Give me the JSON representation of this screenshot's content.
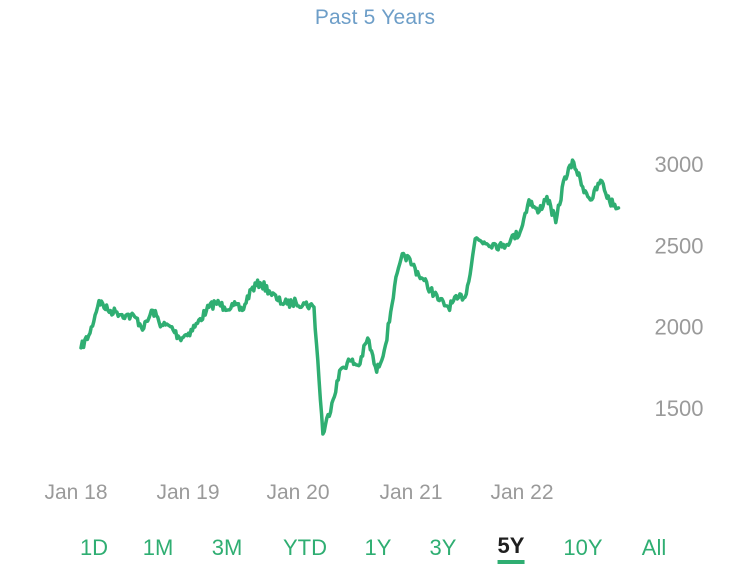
{
  "header": {
    "title": "Past 5 Years"
  },
  "chart_data": {
    "type": "line",
    "title": "Past 5 Years",
    "xlabel": "",
    "ylabel": "",
    "x_tick_labels": [
      "Jan 18",
      "Jan 19",
      "Jan 20",
      "Jan 21",
      "Jan 22"
    ],
    "y_tick_labels": [
      "3000",
      "2500",
      "2000",
      "1500"
    ],
    "y_ticks": [
      3000,
      2500,
      2000,
      1500
    ],
    "ylim": [
      1200,
      3250
    ],
    "x_range": [
      "2018-01",
      "2023-01"
    ],
    "grid": false,
    "line_color": "#2fae72",
    "series": [
      {
        "x": [
          "2017-12",
          "2018-01",
          "2018-02",
          "2018-03",
          "2018-04",
          "2018-05",
          "2018-06",
          "2018-07",
          "2018-08",
          "2018-09",
          "2018-10",
          "2018-11",
          "2018-12",
          "2019-01",
          "2019-02",
          "2019-03",
          "2019-04",
          "2019-05",
          "2019-06",
          "2019-07",
          "2019-08",
          "2019-09",
          "2019-10",
          "2019-11",
          "2019-12",
          "2020-01",
          "2020-02",
          "2020-03",
          "2020-04",
          "2020-05",
          "2020-06",
          "2020-07",
          "2020-08",
          "2020-09",
          "2020-10",
          "2020-11",
          "2020-12",
          "2021-01",
          "2021-02",
          "2021-03",
          "2021-04",
          "2021-05",
          "2021-06",
          "2021-07",
          "2021-08",
          "2021-09",
          "2021-10",
          "2021-11",
          "2021-12",
          "2022-01",
          "2022-02",
          "2022-03",
          "2022-04",
          "2022-05",
          "2022-06",
          "2022-07",
          "2022-08",
          "2022-09",
          "2022-10",
          "2022-11",
          "2022-12"
        ],
        "values": [
          1870,
          1960,
          2160,
          2100,
          2090,
          2070,
          2060,
          1990,
          2100,
          2010,
          2000,
          1930,
          1960,
          2020,
          2100,
          2150,
          2120,
          2130,
          2100,
          2230,
          2270,
          2220,
          2160,
          2140,
          2150,
          2140,
          2120,
          1340,
          1530,
          1740,
          1790,
          1760,
          1930,
          1720,
          1890,
          2250,
          2450,
          2380,
          2300,
          2230,
          2160,
          2120,
          2170,
          2200,
          2540,
          2520,
          2510,
          2490,
          2540,
          2580,
          2780,
          2700,
          2800,
          2640,
          2920,
          3010,
          2860,
          2780,
          2900,
          2770,
          2730
        ]
      }
    ]
  },
  "range_selector": {
    "options": [
      "1D",
      "1M",
      "3M",
      "YTD",
      "1Y",
      "3Y",
      "5Y",
      "10Y",
      "All"
    ],
    "selected": "5Y",
    "accent": "#2fae72"
  }
}
